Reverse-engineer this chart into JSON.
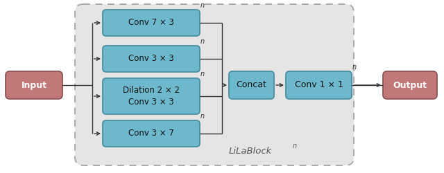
{
  "fig_width": 6.4,
  "fig_height": 2.5,
  "dpi": 100,
  "bg_color": "#ffffff",
  "box_blue": "#6db8cc",
  "box_blue_edge": "#4a8fa0",
  "box_red": "#c07878",
  "box_red_edge": "#8b5555",
  "dashed_bg": "#e5e5e5",
  "dashed_edge": "#aaaaaa",
  "input_label": "Input",
  "output_label": "Output",
  "conv_labels": [
    "Conv 7 × 3",
    "Conv 3 × 3",
    "Dilation 2 × 2\nConv 3 × 3",
    "Conv 3 × 7"
  ],
  "concat_label": "Concat",
  "conv11_label": "Conv 1 × 1",
  "lilablock_label": "LiLaBlock",
  "line_color": "#333333",
  "text_color_dark": "#111111",
  "text_color_light": "#ffffff"
}
